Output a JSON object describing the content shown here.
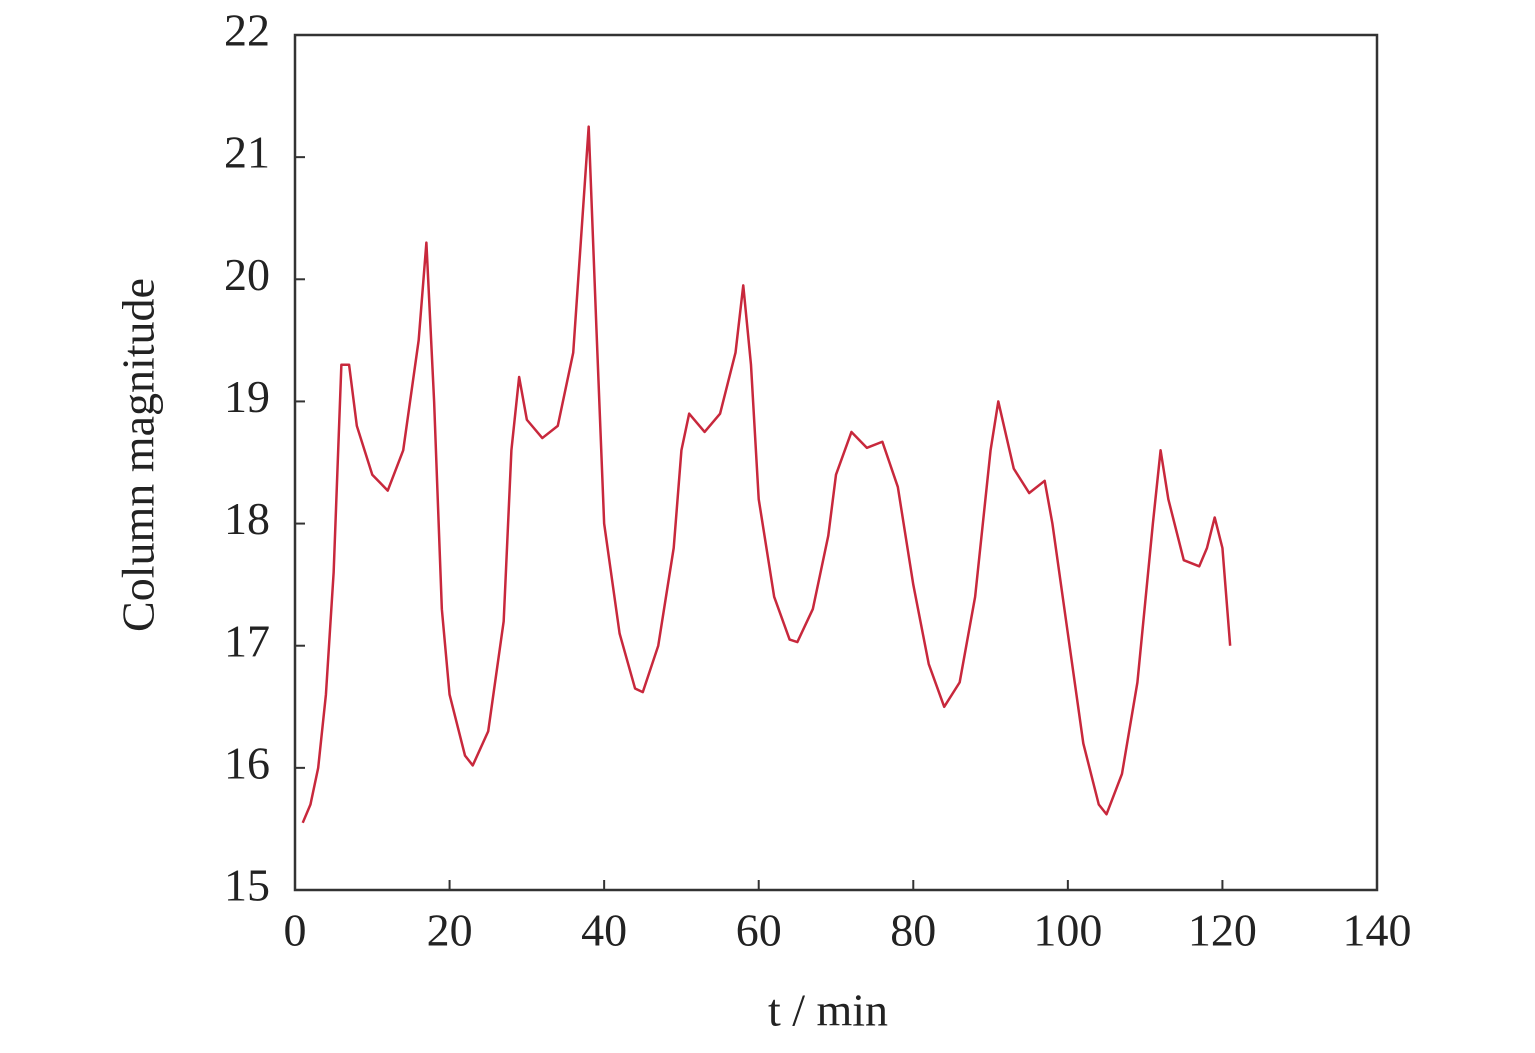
{
  "chart_data": {
    "type": "line",
    "xlabel": "t / min",
    "ylabel": "Column magnitude",
    "x": [
      1,
      2,
      3,
      4,
      5,
      6,
      7,
      8,
      10,
      12,
      14,
      16,
      17,
      18,
      19,
      20,
      22,
      23,
      25,
      27,
      28,
      29,
      30,
      32,
      34,
      36,
      38,
      39,
      40,
      42,
      44,
      45,
      47,
      49,
      50,
      51,
      53,
      55,
      57,
      58,
      59,
      60,
      62,
      64,
      65,
      67,
      69,
      70,
      72,
      74,
      76,
      78,
      80,
      82,
      84,
      86,
      88,
      90,
      91,
      93,
      95,
      97,
      98,
      100,
      102,
      104,
      105,
      107,
      109,
      111,
      112,
      113,
      115,
      117,
      118,
      119,
      120,
      121
    ],
    "series": [
      {
        "color": "#c8283c",
        "values": [
          15.55,
          15.7,
          16.0,
          16.6,
          17.6,
          19.3,
          19.3,
          18.8,
          18.4,
          18.27,
          18.6,
          19.5,
          20.3,
          19.0,
          17.3,
          16.6,
          16.1,
          16.02,
          16.3,
          17.2,
          18.6,
          19.2,
          18.85,
          18.7,
          18.8,
          19.4,
          21.25,
          19.6,
          18.0,
          17.1,
          16.65,
          16.62,
          17.0,
          17.8,
          18.6,
          18.9,
          18.75,
          18.9,
          19.4,
          19.95,
          19.3,
          18.2,
          17.4,
          17.05,
          17.03,
          17.3,
          17.9,
          18.4,
          18.75,
          18.62,
          18.67,
          18.3,
          17.5,
          16.85,
          16.5,
          16.7,
          17.4,
          18.6,
          19.0,
          18.45,
          18.25,
          18.35,
          18.0,
          17.1,
          16.2,
          15.7,
          15.62,
          15.95,
          16.7,
          18.0,
          18.6,
          18.2,
          17.7,
          17.65,
          17.8,
          18.05,
          17.8,
          17.0
        ]
      }
    ],
    "xlim": [
      0,
      140
    ],
    "xticks": [
      0,
      20,
      40,
      60,
      80,
      100,
      120,
      140
    ],
    "ylim": [
      15,
      22
    ],
    "yticks": [
      15,
      16,
      17,
      18,
      19,
      20,
      21,
      22
    ]
  }
}
